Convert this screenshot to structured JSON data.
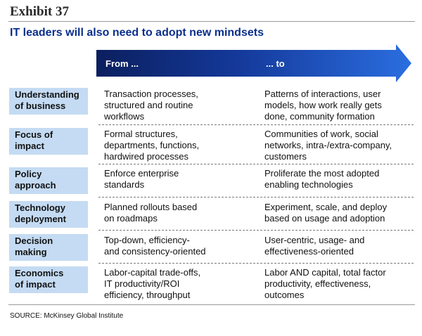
{
  "exhibit": {
    "label": "Exhibit 37"
  },
  "title": "IT leaders will also need to adopt new mindsets",
  "columns": {
    "from": "From ...",
    "to": "... to"
  },
  "colors": {
    "arrow_dark": "#0b1f5e",
    "arrow_light": "#2b6ee0",
    "row_header_bg": "#c4dbf3",
    "title": "#0a2f8c"
  },
  "rows": [
    {
      "header": [
        "Understanding",
        "of business"
      ],
      "from": [
        "Transaction processes,",
        "structured and routine",
        "workflows"
      ],
      "to": [
        "Patterns of interactions, user",
        "models, how work really gets",
        "done, community formation"
      ]
    },
    {
      "header": [
        "Focus of",
        "impact"
      ],
      "from": [
        "Formal structures,",
        "departments, functions,",
        "hardwired processes"
      ],
      "to": [
        "Communities of work, social",
        "networks, intra-/extra-company,",
        "customers"
      ]
    },
    {
      "header": [
        "Policy",
        "approach"
      ],
      "from": [
        "Enforce enterprise",
        "standards"
      ],
      "to": [
        "Proliferate the most adopted",
        "enabling technologies"
      ]
    },
    {
      "header": [
        "Technology",
        "deployment"
      ],
      "from": [
        "Planned rollouts based",
        "on roadmaps"
      ],
      "to": [
        "Experiment, scale, and deploy",
        "based on usage and adoption"
      ]
    },
    {
      "header": [
        "Decision",
        "making"
      ],
      "from": [
        "Top-down, efficiency-",
        "and consistency-oriented"
      ],
      "to": [
        "User-centric, usage- and",
        "effectiveness-oriented"
      ]
    },
    {
      "header": [
        "Economics",
        "of impact"
      ],
      "from": [
        "Labor-capital trade-offs,",
        "IT productivity/ROI",
        "efficiency, throughput"
      ],
      "to": [
        "Labor AND capital, total factor",
        "productivity, effectiveness,",
        "outcomes"
      ]
    }
  ],
  "source": "SOURCE: McKinsey Global Institute"
}
